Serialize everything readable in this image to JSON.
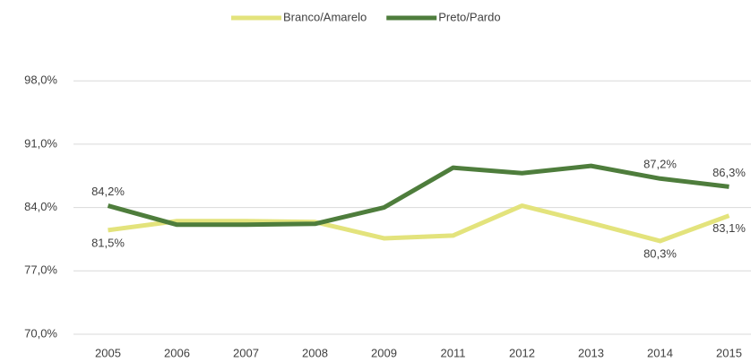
{
  "chart_data": {
    "type": "line",
    "categories": [
      "2005",
      "2006",
      "2007",
      "2008",
      "2009",
      "2011",
      "2012",
      "2013",
      "2014",
      "2015"
    ],
    "series": [
      {
        "name": "Branco/Amarelo",
        "color": "#e3e37c",
        "values": [
          81.5,
          82.5,
          82.5,
          82.4,
          80.6,
          80.9,
          84.2,
          82.3,
          80.3,
          83.1
        ],
        "value_labels": [
          "81,5%",
          null,
          null,
          null,
          null,
          null,
          null,
          null,
          "80,3%",
          "83,1%"
        ]
      },
      {
        "name": "Preto/Pardo",
        "color": "#4e7d3c",
        "values": [
          84.2,
          82.1,
          82.1,
          82.2,
          84.0,
          88.4,
          87.8,
          88.6,
          87.2,
          86.3
        ],
        "value_labels": [
          "84,2%",
          null,
          null,
          null,
          null,
          null,
          null,
          null,
          "87,2%",
          "86,3%"
        ]
      }
    ],
    "ylim": [
      70,
      105
    ],
    "yticks": [
      {
        "value": 70,
        "label": "70,0%"
      },
      {
        "value": 77,
        "label": "77,0%"
      },
      {
        "value": 84,
        "label": "84,0%"
      },
      {
        "value": 91,
        "label": "91,0%"
      },
      {
        "value": 98,
        "label": "98,0%"
      }
    ],
    "grid": true,
    "legend": "top"
  }
}
